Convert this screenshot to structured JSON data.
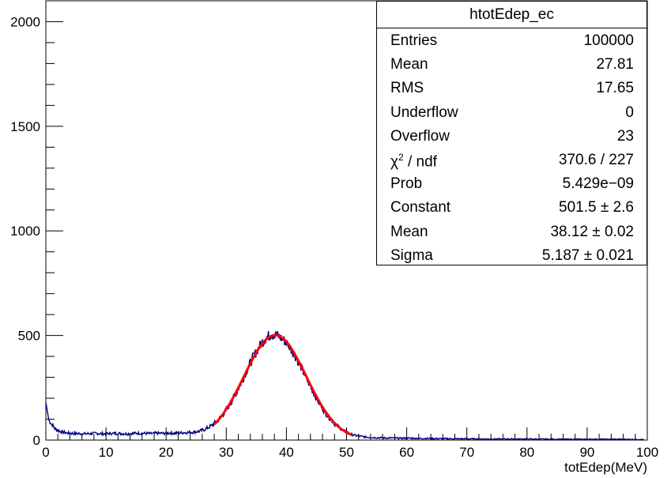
{
  "chart_data": {
    "type": "histogram",
    "title": "",
    "xlabel": "totEdep(MeV)",
    "ylabel": "",
    "xlim": [
      0,
      100
    ],
    "ylim": [
      0,
      2100
    ],
    "x_ticks": [
      0,
      10,
      20,
      30,
      40,
      50,
      60,
      70,
      80,
      90,
      100
    ],
    "y_ticks": [
      0,
      500,
      1000,
      1500,
      2000
    ],
    "grid": false,
    "histogram": {
      "name": "htotEdep_ec",
      "color": "#000080",
      "bin_centers": [
        0.5,
        1.5,
        2.5,
        3.5,
        4.5,
        5.5,
        6.5,
        7.5,
        8.5,
        9.5,
        10.5,
        11.5,
        12.5,
        13.5,
        14.5,
        15.5,
        16.5,
        17.5,
        18.5,
        19.5,
        20.5,
        21.5,
        22.5,
        23.5,
        24.5,
        25.5,
        26.5,
        27.5,
        28.5,
        29.5,
        30.5,
        31.5,
        32.5,
        33.5,
        34.5,
        35.5,
        36.5,
        37.5,
        38.5,
        39.5,
        40.5,
        41.5,
        42.5,
        43.5,
        44.5,
        45.5,
        46.5,
        47.5,
        48.5,
        49.5,
        50.5,
        51.5,
        52.5,
        53.5,
        54.5,
        55.5,
        56.5,
        57.5,
        58.5,
        59.5,
        60.5,
        62.5,
        65,
        70,
        75,
        80,
        85,
        90,
        95,
        99.5
      ],
      "counts": [
        95,
        55,
        40,
        34,
        32,
        31,
        30,
        31,
        32,
        30,
        31,
        32,
        31,
        30,
        32,
        33,
        32,
        31,
        33,
        32,
        34,
        33,
        35,
        36,
        38,
        42,
        52,
        68,
        92,
        124,
        165,
        218,
        275,
        340,
        398,
        448,
        486,
        508,
        500,
        480,
        450,
        400,
        345,
        285,
        228,
        175,
        130,
        95,
        66,
        45,
        30,
        22,
        17,
        14,
        12,
        11,
        10,
        10,
        9,
        9,
        9,
        8,
        7,
        6,
        5,
        5,
        4,
        4,
        4,
        3
      ]
    },
    "fit": {
      "type": "gaus",
      "color": "#ff0000",
      "constant": 501.5,
      "mean": 38.12,
      "sigma": 5.187,
      "x_range": [
        28,
        51
      ]
    }
  },
  "stats": {
    "title": "htotEdep_ec",
    "rows": [
      {
        "label": "Entries",
        "value": "100000"
      },
      {
        "label": "Mean",
        "value": "27.81"
      },
      {
        "label": "RMS",
        "value": "17.65"
      },
      {
        "label": "Underflow",
        "value": "0"
      },
      {
        "label": "Overflow",
        "value": "23"
      },
      {
        "label_base": "χ",
        "label_sup": "2",
        "label_tail": " / ndf",
        "value": "370.6 / 227"
      },
      {
        "label": "Prob",
        "value": "5.429e−09"
      },
      {
        "label": "Constant",
        "value": "501.5 ± 2.6"
      },
      {
        "label": "Mean",
        "value": "38.12 ± 0.02"
      },
      {
        "label": "Sigma",
        "value": "5.187 ± 0.021"
      }
    ]
  }
}
